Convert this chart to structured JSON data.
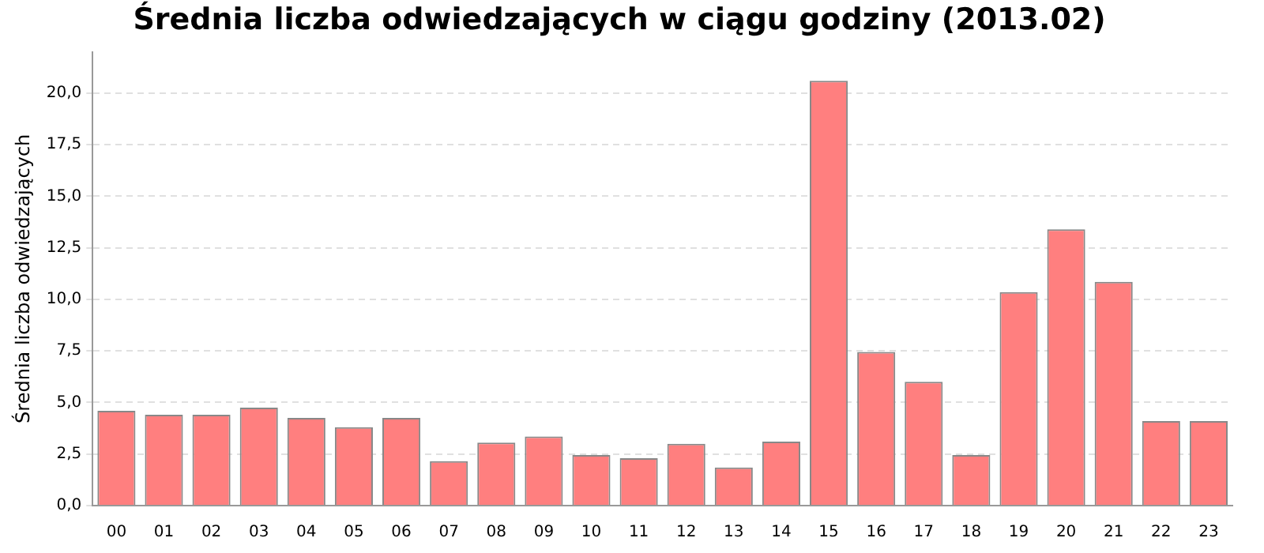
{
  "chart_data": {
    "type": "bar",
    "title": "Średnia liczba odwiedzających w ciągu godziny (2013.02)",
    "ylabel": "Średnia liczba odwiedzających",
    "categories": [
      "00",
      "01",
      "02",
      "03",
      "04",
      "05",
      "06",
      "07",
      "08",
      "09",
      "10",
      "11",
      "12",
      "13",
      "14",
      "15",
      "16",
      "17",
      "18",
      "19",
      "20",
      "21",
      "22",
      "23"
    ],
    "values": [
      4.6,
      4.4,
      4.4,
      4.75,
      4.25,
      3.8,
      4.25,
      2.15,
      3.05,
      3.35,
      2.45,
      2.3,
      3.0,
      1.85,
      3.1,
      20.6,
      7.45,
      6.0,
      2.45,
      10.35,
      13.4,
      10.85,
      4.1,
      4.1
    ],
    "color": "#ff7f7f",
    "ylim": [
      0,
      22
    ],
    "yticks": [
      {
        "value": 0,
        "label": "0,0"
      },
      {
        "value": 2.5,
        "label": "2,5"
      },
      {
        "value": 5,
        "label": "5,0"
      },
      {
        "value": 7.5,
        "label": "7,5"
      },
      {
        "value": 10,
        "label": "10,0"
      },
      {
        "value": 12.5,
        "label": "12,5"
      },
      {
        "value": 15,
        "label": "15,0"
      },
      {
        "value": 17.5,
        "label": "17,5"
      },
      {
        "value": 20,
        "label": "20,0"
      }
    ],
    "grid": "y",
    "legend": false
  }
}
